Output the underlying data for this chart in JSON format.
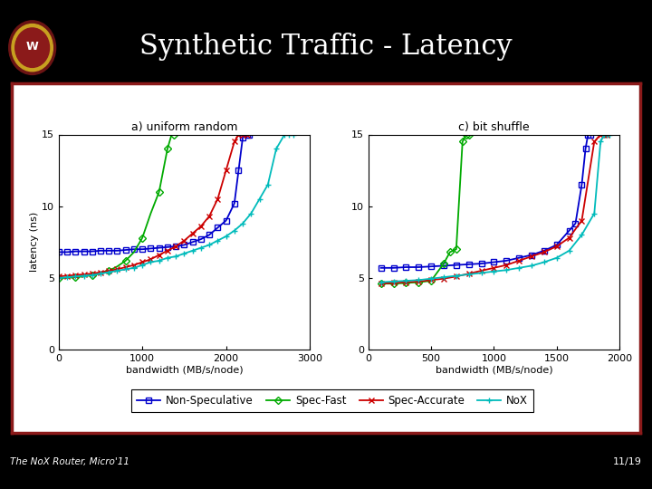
{
  "title": "Synthetic Traffic - Latency",
  "title_color": "#ffffff",
  "bg_color": "#000000",
  "panel_bg": "#ffffff",
  "border_color": "#8B1a1a",
  "footer_left": "The NoX Router, Micro'11",
  "footer_right": "11/19",
  "subplot1_title": "a) uniform random",
  "subplot2_title": "c) bit shuffle",
  "xlabel": "bandwidth (MB/s/node)",
  "ylabel": "latency (ns)",
  "ylim": [
    0,
    15
  ],
  "colors": {
    "non_spec": "#0000cc",
    "spec_fast": "#00aa00",
    "spec_acc": "#cc0000",
    "nox": "#00bbbb"
  },
  "legend_labels": [
    "Non-Speculative",
    "Spec-Fast",
    "Spec-Accurate",
    "NoX"
  ],
  "uniform_bw_nonspec": [
    0,
    100,
    200,
    300,
    400,
    500,
    600,
    700,
    800,
    900,
    1000,
    1100,
    1200,
    1300,
    1400,
    1500,
    1600,
    1700,
    1800,
    1900,
    2000,
    2100,
    2150,
    2200,
    2250,
    2280
  ],
  "uniform_lat_nonspec": [
    6.8,
    6.8,
    6.85,
    6.85,
    6.85,
    6.9,
    6.9,
    6.9,
    6.95,
    7.0,
    7.0,
    7.05,
    7.1,
    7.15,
    7.2,
    7.3,
    7.5,
    7.7,
    8.0,
    8.5,
    9.0,
    10.2,
    12.5,
    14.8,
    15.0,
    15.0
  ],
  "uniform_bw_specfast": [
    0,
    100,
    200,
    300,
    400,
    500,
    600,
    700,
    800,
    900,
    1000,
    1100,
    1200,
    1250,
    1300,
    1350,
    1380
  ],
  "uniform_lat_specfast": [
    5.0,
    5.0,
    5.05,
    5.1,
    5.2,
    5.3,
    5.5,
    5.8,
    6.2,
    6.8,
    7.8,
    9.5,
    11.0,
    12.5,
    14.0,
    15.0,
    15.0
  ],
  "uniform_bw_specacc": [
    0,
    100,
    200,
    300,
    400,
    500,
    600,
    700,
    800,
    900,
    1000,
    1100,
    1200,
    1300,
    1400,
    1500,
    1600,
    1700,
    1800,
    1900,
    2000,
    2100,
    2150,
    2200,
    2250
  ],
  "uniform_lat_specacc": [
    5.1,
    5.15,
    5.2,
    5.25,
    5.3,
    5.4,
    5.5,
    5.6,
    5.75,
    5.9,
    6.1,
    6.3,
    6.6,
    6.9,
    7.2,
    7.6,
    8.1,
    8.6,
    9.3,
    10.5,
    12.5,
    14.5,
    15.0,
    15.0,
    15.0
  ],
  "uniform_bw_nox": [
    0,
    100,
    200,
    300,
    400,
    500,
    600,
    700,
    800,
    900,
    1000,
    1100,
    1200,
    1300,
    1400,
    1500,
    1600,
    1700,
    1800,
    1900,
    2000,
    2100,
    2200,
    2300,
    2400,
    2500,
    2600,
    2700,
    2750,
    2800
  ],
  "uniform_lat_nox": [
    5.0,
    5.05,
    5.1,
    5.15,
    5.2,
    5.3,
    5.4,
    5.5,
    5.6,
    5.7,
    5.9,
    6.1,
    6.2,
    6.4,
    6.5,
    6.7,
    6.9,
    7.1,
    7.3,
    7.6,
    7.9,
    8.3,
    8.8,
    9.5,
    10.5,
    11.5,
    14.0,
    15.0,
    15.0,
    15.0
  ],
  "bitshuffle_bw_nonspec": [
    100,
    200,
    300,
    400,
    500,
    600,
    700,
    800,
    900,
    1000,
    1100,
    1200,
    1300,
    1400,
    1500,
    1600,
    1650,
    1700,
    1730,
    1750,
    1770
  ],
  "bitshuffle_lat_nonspec": [
    5.7,
    5.7,
    5.75,
    5.75,
    5.8,
    5.85,
    5.9,
    5.95,
    6.0,
    6.1,
    6.2,
    6.4,
    6.6,
    6.9,
    7.3,
    8.3,
    8.8,
    11.5,
    14.0,
    15.0,
    15.0
  ],
  "bitshuffle_bw_specfast": [
    100,
    200,
    300,
    400,
    500,
    600,
    650,
    700,
    750,
    780,
    800
  ],
  "bitshuffle_lat_specfast": [
    4.6,
    4.6,
    4.65,
    4.7,
    4.8,
    6.0,
    6.8,
    7.0,
    14.5,
    15.0,
    15.0
  ],
  "bitshuffle_bw_specacc": [
    100,
    200,
    300,
    400,
    500,
    600,
    700,
    800,
    900,
    1000,
    1100,
    1200,
    1300,
    1400,
    1500,
    1600,
    1700,
    1800,
    1850,
    1880,
    1900
  ],
  "bitshuffle_lat_specacc": [
    4.6,
    4.65,
    4.7,
    4.75,
    4.85,
    4.95,
    5.1,
    5.3,
    5.5,
    5.7,
    5.9,
    6.2,
    6.5,
    6.8,
    7.2,
    7.8,
    9.0,
    14.5,
    15.0,
    15.0,
    15.0
  ],
  "bitshuffle_bw_nox": [
    100,
    200,
    300,
    400,
    500,
    600,
    700,
    800,
    900,
    1000,
    1100,
    1200,
    1300,
    1400,
    1500,
    1600,
    1700,
    1800,
    1850,
    1880,
    1900,
    1920
  ],
  "bitshuffle_lat_nox": [
    4.7,
    4.75,
    4.8,
    4.85,
    4.95,
    5.05,
    5.15,
    5.25,
    5.35,
    5.45,
    5.55,
    5.7,
    5.85,
    6.1,
    6.4,
    6.9,
    8.0,
    9.5,
    14.5,
    15.0,
    15.0,
    15.0
  ]
}
